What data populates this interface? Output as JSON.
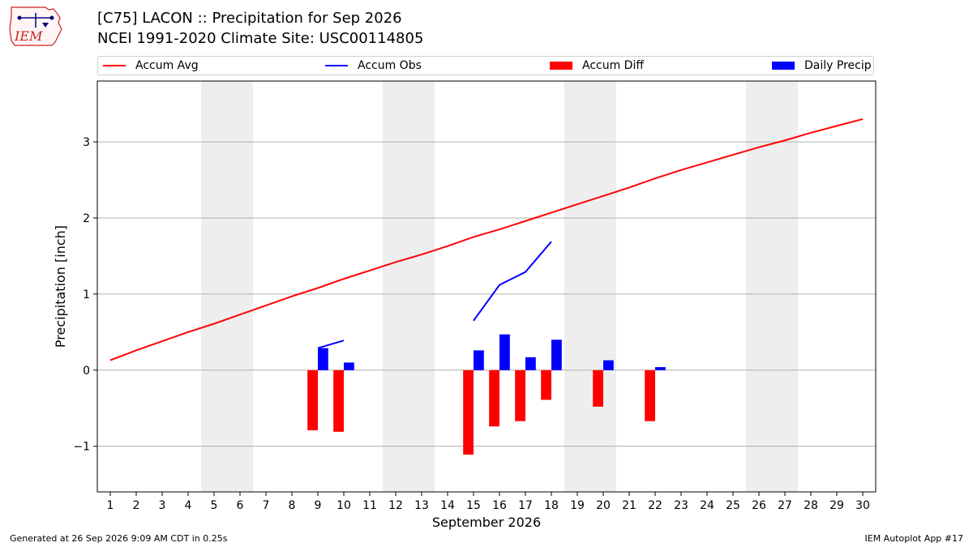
{
  "header": {
    "title_line1": "[C75] LACON :: Precipitation for Sep 2026",
    "title_line2": "NCEI 1991-2020 Climate Site: USC00114805",
    "logo_text": "IEM"
  },
  "footer": {
    "generated": "Generated at 26 Sep 2026 9:09 AM CDT in 0.25s",
    "app": "IEM Autoplot App #17"
  },
  "colors": {
    "avg": "#ff0000",
    "obs": "#0000ff",
    "diff": "#ff0000",
    "daily": "#0000ff",
    "weekend": "#eeeeee",
    "grid": "#b0b0b0"
  },
  "chart_data": {
    "type": "bar",
    "xlabel": "September 2026",
    "ylabel": "Precipitation [inch]",
    "xlim": [
      0.5,
      30.5
    ],
    "ylim": [
      -1.6,
      3.8
    ],
    "yticks": [
      -1,
      0,
      1,
      2,
      3
    ],
    "ytick_labels": [
      "−1",
      "0",
      "1",
      "2",
      "3"
    ],
    "x": [
      1,
      2,
      3,
      4,
      5,
      6,
      7,
      8,
      9,
      10,
      11,
      12,
      13,
      14,
      15,
      16,
      17,
      18,
      19,
      20,
      21,
      22,
      23,
      24,
      25,
      26,
      27,
      28,
      29,
      30
    ],
    "x_tick_labels": [
      "1",
      "2",
      "3",
      "4",
      "5",
      "6",
      "7",
      "8",
      "9",
      "10",
      "11",
      "12",
      "13",
      "14",
      "15",
      "16",
      "17",
      "18",
      "19",
      "20",
      "21",
      "22",
      "23",
      "24",
      "25",
      "26",
      "27",
      "28",
      "29",
      "30"
    ],
    "grid": "horizontal",
    "legend_position": "top",
    "weekend_days": [
      [
        5,
        6
      ],
      [
        12,
        13
      ],
      [
        19,
        20
      ],
      [
        26,
        27
      ]
    ],
    "series": [
      {
        "name": "Accum Avg",
        "kind": "line",
        "x": [
          1,
          2,
          3,
          4,
          5,
          6,
          7,
          8,
          9,
          10,
          11,
          12,
          13,
          14,
          15,
          16,
          17,
          18,
          19,
          20,
          21,
          22,
          23,
          24,
          25,
          26,
          27,
          28,
          29,
          30
        ],
        "values": [
          0.13,
          0.26,
          0.38,
          0.5,
          0.61,
          0.73,
          0.85,
          0.97,
          1.08,
          1.2,
          1.31,
          1.42,
          1.52,
          1.63,
          1.75,
          1.85,
          1.96,
          2.07,
          2.18,
          2.29,
          2.4,
          2.52,
          2.63,
          2.73,
          2.83,
          2.93,
          3.02,
          3.12,
          3.21,
          3.3
        ]
      },
      {
        "name": "Accum Obs",
        "kind": "line",
        "segments": [
          {
            "x": [
              9,
              10
            ],
            "values": [
              0.29,
              0.39
            ]
          },
          {
            "x": [
              15,
              16,
              17,
              18
            ],
            "values": [
              0.65,
              1.12,
              1.29,
              1.69
            ]
          }
        ]
      },
      {
        "name": "Accum Diff",
        "kind": "bar",
        "x": [
          9,
          10,
          15,
          16,
          17,
          18,
          20,
          22
        ],
        "values": [
          -0.79,
          -0.81,
          -1.11,
          -0.74,
          -0.67,
          -0.39,
          -0.48,
          -0.67
        ]
      },
      {
        "name": "Daily Precip",
        "kind": "bar",
        "x": [
          9,
          10,
          15,
          16,
          17,
          18,
          20,
          22
        ],
        "values": [
          0.29,
          0.1,
          0.26,
          0.47,
          0.17,
          0.4,
          0.13,
          0.04
        ]
      }
    ]
  }
}
